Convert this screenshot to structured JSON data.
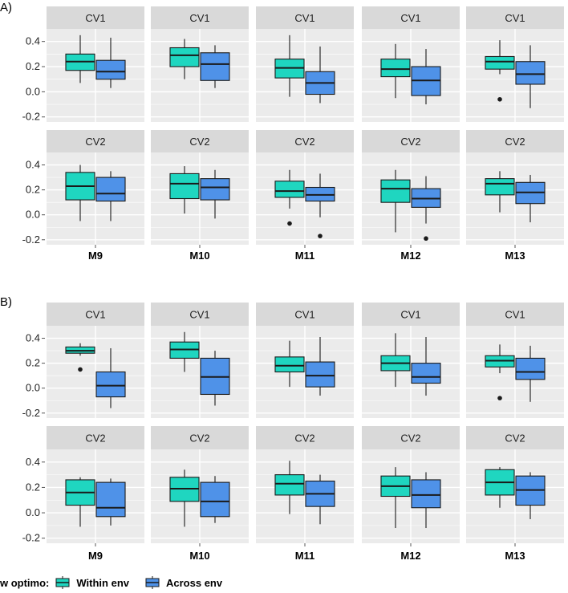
{
  "colors": {
    "panel_bg": "#ebebeb",
    "strip_bg": "#d9d9d9",
    "grid": "#ffffff",
    "within_env": "#1fd6c0",
    "across_env": "#4f92e8",
    "outline": "#1a1a1a",
    "text": "#222222"
  },
  "legend": {
    "title": "w optimo:",
    "items": [
      {
        "label": "Within env",
        "color_key": "within_env"
      },
      {
        "label": "Across env",
        "color_key": "across_env"
      }
    ]
  },
  "chart_data": [
    {
      "type": "boxplot",
      "label": "A)",
      "facet_rows": [
        "CV1",
        "CV2"
      ],
      "facet_cols": [
        "M9",
        "M10",
        "M11",
        "M12",
        "M13"
      ],
      "series": [
        "Within env",
        "Across env"
      ],
      "y_ticks": [
        0.4,
        0.2,
        0.0,
        -0.2
      ],
      "y_tick_labels": [
        "0.4",
        "0.2",
        "0.0",
        "-0.2"
      ],
      "ylim": [
        -0.24,
        0.5
      ],
      "boxes": {
        "CV1": [
          [
            {
              "whislo": 0.07,
              "q1": 0.17,
              "med": 0.24,
              "q3": 0.3,
              "whishi": 0.45,
              "outliers": []
            },
            {
              "whislo": 0.03,
              "q1": 0.1,
              "med": 0.16,
              "q3": 0.25,
              "whishi": 0.43,
              "outliers": []
            }
          ],
          [
            {
              "whislo": 0.1,
              "q1": 0.2,
              "med": 0.29,
              "q3": 0.35,
              "whishi": 0.42,
              "outliers": []
            },
            {
              "whislo": 0.03,
              "q1": 0.09,
              "med": 0.22,
              "q3": 0.31,
              "whishi": 0.37,
              "outliers": []
            }
          ],
          [
            {
              "whislo": -0.04,
              "q1": 0.11,
              "med": 0.19,
              "q3": 0.26,
              "whishi": 0.45,
              "outliers": []
            },
            {
              "whislo": -0.09,
              "q1": -0.02,
              "med": 0.07,
              "q3": 0.16,
              "whishi": 0.36,
              "outliers": []
            }
          ],
          [
            {
              "whislo": -0.05,
              "q1": 0.12,
              "med": 0.18,
              "q3": 0.26,
              "whishi": 0.38,
              "outliers": []
            },
            {
              "whislo": -0.1,
              "q1": -0.03,
              "med": 0.09,
              "q3": 0.2,
              "whishi": 0.34,
              "outliers": []
            }
          ],
          [
            {
              "whislo": 0.14,
              "q1": 0.18,
              "med": 0.24,
              "q3": 0.28,
              "whishi": 0.41,
              "outliers": [
                -0.06
              ]
            },
            {
              "whislo": -0.13,
              "q1": 0.06,
              "med": 0.14,
              "q3": 0.24,
              "whishi": 0.37,
              "outliers": []
            }
          ]
        ],
        "CV2": [
          [
            {
              "whislo": -0.05,
              "q1": 0.12,
              "med": 0.23,
              "q3": 0.34,
              "whishi": 0.4,
              "outliers": []
            },
            {
              "whislo": -0.05,
              "q1": 0.11,
              "med": 0.17,
              "q3": 0.3,
              "whishi": 0.35,
              "outliers": []
            }
          ],
          [
            {
              "whislo": 0.01,
              "q1": 0.13,
              "med": 0.25,
              "q3": 0.33,
              "whishi": 0.39,
              "outliers": []
            },
            {
              "whislo": -0.03,
              "q1": 0.12,
              "med": 0.22,
              "q3": 0.29,
              "whishi": 0.36,
              "outliers": []
            }
          ],
          [
            {
              "whislo": 0.05,
              "q1": 0.14,
              "med": 0.19,
              "q3": 0.27,
              "whishi": 0.36,
              "outliers": [
                -0.07
              ]
            },
            {
              "whislo": -0.02,
              "q1": 0.11,
              "med": 0.16,
              "q3": 0.22,
              "whishi": 0.33,
              "outliers": [
                -0.17
              ]
            }
          ],
          [
            {
              "whislo": -0.14,
              "q1": 0.1,
              "med": 0.21,
              "q3": 0.28,
              "whishi": 0.36,
              "outliers": []
            },
            {
              "whislo": -0.07,
              "q1": 0.06,
              "med": 0.13,
              "q3": 0.21,
              "whishi": 0.31,
              "outliers": [
                -0.19
              ]
            }
          ],
          [
            {
              "whislo": 0.02,
              "q1": 0.16,
              "med": 0.25,
              "q3": 0.29,
              "whishi": 0.35,
              "outliers": []
            },
            {
              "whislo": -0.06,
              "q1": 0.09,
              "med": 0.18,
              "q3": 0.26,
              "whishi": 0.32,
              "outliers": []
            }
          ]
        ]
      }
    },
    {
      "type": "boxplot",
      "label": "B)",
      "facet_rows": [
        "CV1",
        "CV2"
      ],
      "facet_cols": [
        "M9",
        "M10",
        "M11",
        "M12",
        "M13"
      ],
      "series": [
        "Within env",
        "Across env"
      ],
      "y_ticks": [
        0.4,
        0.2,
        0.0,
        -0.2
      ],
      "y_tick_labels": [
        "0.4",
        "0.2",
        "0.0",
        "-0.2"
      ],
      "ylim": [
        -0.24,
        0.5
      ],
      "boxes": {
        "CV1": [
          [
            {
              "whislo": 0.26,
              "q1": 0.28,
              "med": 0.3,
              "q3": 0.33,
              "whishi": 0.36,
              "outliers": [
                0.15
              ]
            },
            {
              "whislo": -0.16,
              "q1": -0.07,
              "med": 0.02,
              "q3": 0.13,
              "whishi": 0.32,
              "outliers": []
            }
          ],
          [
            {
              "whislo": 0.13,
              "q1": 0.24,
              "med": 0.31,
              "q3": 0.37,
              "whishi": 0.45,
              "outliers": []
            },
            {
              "whislo": -0.14,
              "q1": -0.05,
              "med": 0.09,
              "q3": 0.24,
              "whishi": 0.3,
              "outliers": []
            }
          ],
          [
            {
              "whislo": 0.01,
              "q1": 0.13,
              "med": 0.18,
              "q3": 0.25,
              "whishi": 0.38,
              "outliers": []
            },
            {
              "whislo": -0.06,
              "q1": 0.01,
              "med": 0.1,
              "q3": 0.21,
              "whishi": 0.41,
              "outliers": []
            }
          ],
          [
            {
              "whislo": 0.01,
              "q1": 0.14,
              "med": 0.2,
              "q3": 0.26,
              "whishi": 0.44,
              "outliers": []
            },
            {
              "whislo": -0.06,
              "q1": 0.04,
              "med": 0.09,
              "q3": 0.2,
              "whishi": 0.41,
              "outliers": []
            }
          ],
          [
            {
              "whislo": 0.12,
              "q1": 0.17,
              "med": 0.22,
              "q3": 0.26,
              "whishi": 0.35,
              "outliers": [
                -0.08
              ]
            },
            {
              "whislo": -0.11,
              "q1": 0.07,
              "med": 0.13,
              "q3": 0.24,
              "whishi": 0.34,
              "outliers": []
            }
          ]
        ],
        "CV2": [
          [
            {
              "whislo": -0.11,
              "q1": 0.06,
              "med": 0.16,
              "q3": 0.26,
              "whishi": 0.28,
              "outliers": []
            },
            {
              "whislo": -0.1,
              "q1": -0.03,
              "med": 0.04,
              "q3": 0.24,
              "whishi": 0.27,
              "outliers": []
            }
          ],
          [
            {
              "whislo": -0.11,
              "q1": 0.09,
              "med": 0.19,
              "q3": 0.28,
              "whishi": 0.34,
              "outliers": []
            },
            {
              "whislo": -0.08,
              "q1": -0.03,
              "med": 0.09,
              "q3": 0.24,
              "whishi": 0.29,
              "outliers": []
            }
          ],
          [
            {
              "whislo": -0.01,
              "q1": 0.14,
              "med": 0.23,
              "q3": 0.3,
              "whishi": 0.41,
              "outliers": []
            },
            {
              "whislo": -0.09,
              "q1": 0.05,
              "med": 0.15,
              "q3": 0.25,
              "whishi": 0.3,
              "outliers": []
            }
          ],
          [
            {
              "whislo": -0.12,
              "q1": 0.13,
              "med": 0.21,
              "q3": 0.29,
              "whishi": 0.36,
              "outliers": []
            },
            {
              "whislo": -0.12,
              "q1": 0.04,
              "med": 0.14,
              "q3": 0.26,
              "whishi": 0.32,
              "outliers": []
            }
          ],
          [
            {
              "whislo": 0.04,
              "q1": 0.14,
              "med": 0.24,
              "q3": 0.34,
              "whishi": 0.36,
              "outliers": []
            },
            {
              "whislo": -0.05,
              "q1": 0.06,
              "med": 0.18,
              "q3": 0.29,
              "whishi": 0.32,
              "outliers": []
            }
          ]
        ]
      }
    }
  ]
}
